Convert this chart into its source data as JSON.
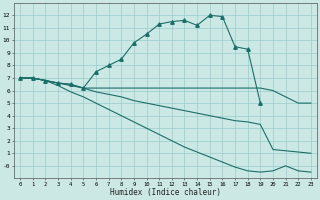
{
  "xlabel": "Humidex (Indice chaleur)",
  "xlim": [
    -0.5,
    23.5
  ],
  "ylim": [
    -1.0,
    13.0
  ],
  "bg_color": "#cce8e4",
  "grid_color": "#99cccc",
  "line_color": "#1a6e6a",
  "lines": [
    {
      "x": [
        0,
        1,
        2,
        3,
        4,
        5,
        6,
        7,
        8,
        9,
        10,
        11,
        12,
        13,
        14,
        15,
        16,
        17,
        18,
        19
      ],
      "y": [
        7.0,
        7.0,
        6.8,
        6.6,
        6.5,
        6.2,
        7.5,
        8.0,
        8.5,
        9.8,
        10.5,
        11.3,
        11.5,
        11.6,
        11.2,
        12.0,
        11.9,
        9.5,
        9.3,
        5.0
      ],
      "marker": "^",
      "markersize": 2.5
    },
    {
      "x": [
        0,
        1,
        2,
        3,
        4,
        5,
        6,
        7,
        8,
        9,
        10,
        11,
        12,
        13,
        14,
        15,
        16,
        17,
        18,
        19,
        20,
        21,
        22,
        23
      ],
      "y": [
        7.0,
        7.0,
        6.8,
        6.6,
        6.5,
        6.2,
        6.2,
        6.2,
        6.2,
        6.2,
        6.2,
        6.2,
        6.2,
        6.2,
        6.2,
        6.2,
        6.2,
        6.2,
        6.2,
        6.2,
        6.0,
        5.5,
        5.0,
        5.0
      ],
      "marker": null,
      "markersize": 0
    },
    {
      "x": [
        0,
        1,
        2,
        3,
        4,
        5,
        6,
        7,
        8,
        9,
        10,
        11,
        12,
        13,
        14,
        15,
        16,
        17,
        18,
        19,
        20,
        21,
        22,
        23
      ],
      "y": [
        7.0,
        7.0,
        6.8,
        6.6,
        6.4,
        6.2,
        5.9,
        5.7,
        5.5,
        5.2,
        5.0,
        4.8,
        4.6,
        4.4,
        4.2,
        4.0,
        3.8,
        3.6,
        3.5,
        3.3,
        1.3,
        1.2,
        1.1,
        1.0
      ],
      "marker": null,
      "markersize": 0
    },
    {
      "x": [
        0,
        1,
        2,
        3,
        4,
        5,
        6,
        7,
        8,
        9,
        10,
        11,
        12,
        13,
        14,
        15,
        16,
        17,
        18,
        19,
        20,
        21,
        22,
        23
      ],
      "y": [
        7.0,
        7.0,
        6.8,
        6.4,
        5.9,
        5.5,
        5.0,
        4.5,
        4.0,
        3.5,
        3.0,
        2.5,
        2.0,
        1.5,
        1.1,
        0.7,
        0.3,
        -0.1,
        -0.4,
        -0.5,
        -0.4,
        0.0,
        -0.4,
        -0.5
      ],
      "marker": null,
      "markersize": 0
    }
  ],
  "yticks": [
    0,
    1,
    2,
    3,
    4,
    5,
    6,
    7,
    8,
    9,
    10,
    11,
    12
  ],
  "xticks": [
    0,
    1,
    2,
    3,
    4,
    5,
    6,
    7,
    8,
    9,
    10,
    11,
    12,
    13,
    14,
    15,
    16,
    17,
    18,
    19,
    20,
    21,
    22,
    23
  ],
  "ytick_labels": [
    "-0",
    "1",
    "2",
    "3",
    "4",
    "5",
    "6",
    "7",
    "8",
    "9",
    "10",
    "11",
    "12"
  ]
}
